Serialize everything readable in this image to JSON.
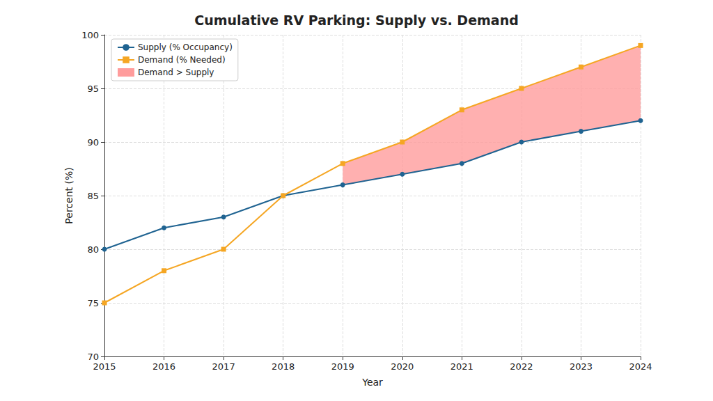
{
  "chart_data": {
    "type": "line",
    "title": "Cumulative RV Parking: Supply vs. Demand",
    "x_label": "Year",
    "y_label": "Percent (%)",
    "categories": [
      "2015",
      "2016",
      "2017",
      "2018",
      "2019",
      "2020",
      "2021",
      "2022",
      "2023",
      "2024"
    ],
    "series": [
      {
        "name": "Supply (% Occupancy)",
        "type": "line",
        "color": "#1f6391",
        "marker": "circle",
        "values": [
          80,
          82,
          83,
          85,
          86,
          87,
          88,
          90,
          91,
          92
        ]
      },
      {
        "name": "Demand (% Needed)",
        "type": "line",
        "color": "#f5a623",
        "marker": "square",
        "values": [
          75,
          78,
          80,
          85,
          88,
          90,
          93,
          95,
          97,
          99
        ]
      },
      {
        "name": "Demand > Supply",
        "type": "area",
        "color": "#ff9c9c"
      }
    ],
    "ylim": [
      70,
      100
    ],
    "yticks": [
      70,
      75,
      80,
      85,
      90,
      95,
      100
    ],
    "grid": true,
    "legend": "upper left"
  }
}
